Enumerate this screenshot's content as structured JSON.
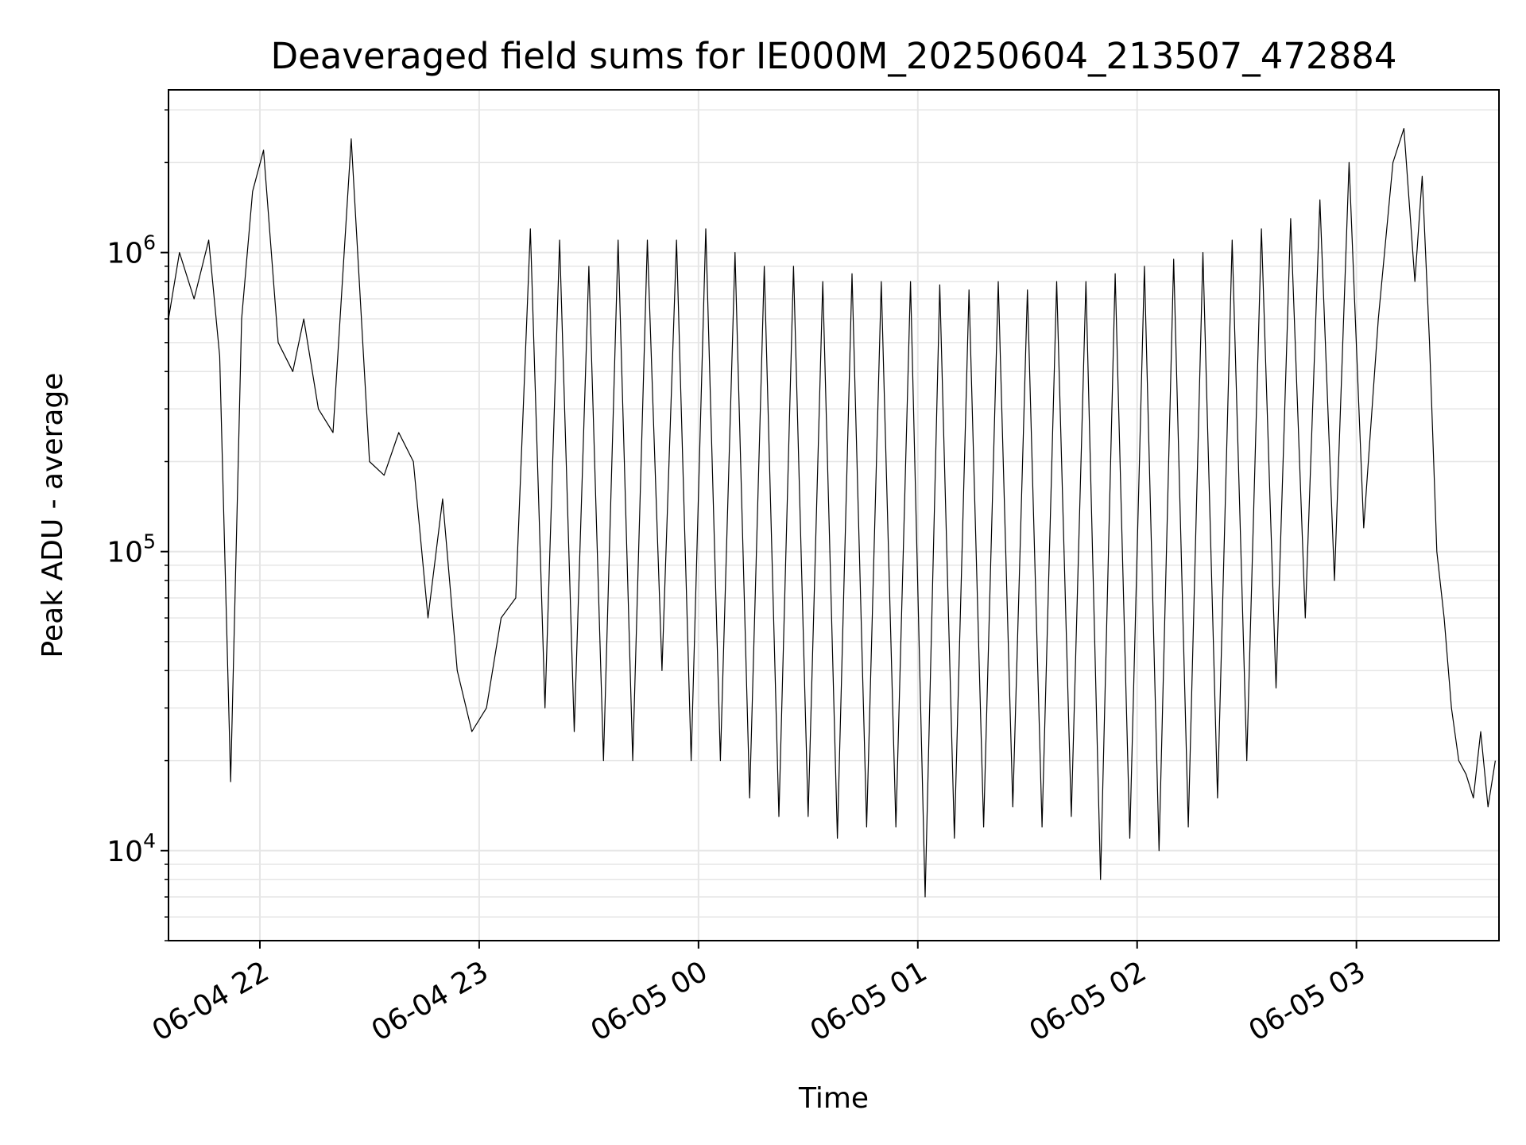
{
  "chart_data": {
    "type": "line",
    "title": "Deaveraged field sums for IE000M_20250604_213507_472884",
    "xlabel": "Time",
    "ylabel": "Peak ADU - average",
    "yscale": "log",
    "grid": true,
    "line_color": "#000000",
    "grid_color": "#e6e6e6",
    "x_range": [
      "2025-06-04 21:35",
      "2025-06-05 03:39"
    ],
    "y_range": [
      5000,
      3500000
    ],
    "x_ticks": [
      {
        "value": "2025-06-04 22:00",
        "label": "06-04 22"
      },
      {
        "value": "2025-06-04 23:00",
        "label": "06-04 23"
      },
      {
        "value": "2025-06-05 00:00",
        "label": "06-05 00"
      },
      {
        "value": "2025-06-05 01:00",
        "label": "06-05 01"
      },
      {
        "value": "2025-06-05 02:00",
        "label": "06-05 02"
      },
      {
        "value": "2025-06-05 03:00",
        "label": "06-05 03"
      }
    ],
    "y_ticks": [
      {
        "value": 10000,
        "base": "10",
        "exp": "4"
      },
      {
        "value": 100000,
        "base": "10",
        "exp": "5"
      },
      {
        "value": 1000000,
        "base": "10",
        "exp": "6"
      }
    ],
    "series": [
      {
        "x": [
          "2025-06-04 21:35",
          "2025-06-04 21:38",
          "2025-06-04 21:42",
          "2025-06-04 21:46",
          "2025-06-04 21:49",
          "2025-06-04 21:52",
          "2025-06-04 21:55",
          "2025-06-04 21:58",
          "2025-06-04 22:01",
          "2025-06-04 22:05",
          "2025-06-04 22:09",
          "2025-06-04 22:12",
          "2025-06-04 22:16",
          "2025-06-04 22:20",
          "2025-06-04 22:25",
          "2025-06-04 22:30",
          "2025-06-04 22:34",
          "2025-06-04 22:38",
          "2025-06-04 22:42",
          "2025-06-04 22:46",
          "2025-06-04 22:50",
          "2025-06-04 22:54",
          "2025-06-04 22:58",
          "2025-06-04 23:02",
          "2025-06-04 23:06",
          "2025-06-04 23:10",
          "2025-06-04 23:14",
          "2025-06-04 23:18",
          "2025-06-04 23:22",
          "2025-06-04 23:26",
          "2025-06-04 23:30",
          "2025-06-04 23:34",
          "2025-06-04 23:38",
          "2025-06-04 23:42",
          "2025-06-04 23:46",
          "2025-06-04 23:50",
          "2025-06-04 23:54",
          "2025-06-04 23:58",
          "2025-06-05 00:02",
          "2025-06-05 00:06",
          "2025-06-05 00:10",
          "2025-06-05 00:14",
          "2025-06-05 00:18",
          "2025-06-05 00:22",
          "2025-06-05 00:26",
          "2025-06-05 00:30",
          "2025-06-05 00:34",
          "2025-06-05 00:38",
          "2025-06-05 00:42",
          "2025-06-05 00:46",
          "2025-06-05 00:50",
          "2025-06-05 00:54",
          "2025-06-05 00:58",
          "2025-06-05 01:02",
          "2025-06-05 01:06",
          "2025-06-05 01:10",
          "2025-06-05 01:14",
          "2025-06-05 01:18",
          "2025-06-05 01:22",
          "2025-06-05 01:26",
          "2025-06-05 01:30",
          "2025-06-05 01:34",
          "2025-06-05 01:38",
          "2025-06-05 01:42",
          "2025-06-05 01:46",
          "2025-06-05 01:50",
          "2025-06-05 01:54",
          "2025-06-05 01:58",
          "2025-06-05 02:02",
          "2025-06-05 02:06",
          "2025-06-05 02:10",
          "2025-06-05 02:14",
          "2025-06-05 02:18",
          "2025-06-05 02:22",
          "2025-06-05 02:26",
          "2025-06-05 02:30",
          "2025-06-05 02:34",
          "2025-06-05 02:38",
          "2025-06-05 02:42",
          "2025-06-05 02:46",
          "2025-06-05 02:50",
          "2025-06-05 02:54",
          "2025-06-05 02:58",
          "2025-06-05 03:02",
          "2025-06-05 03:06",
          "2025-06-05 03:10",
          "2025-06-05 03:13",
          "2025-06-05 03:16",
          "2025-06-05 03:18",
          "2025-06-05 03:20",
          "2025-06-05 03:22",
          "2025-06-05 03:24",
          "2025-06-05 03:26",
          "2025-06-05 03:28",
          "2025-06-05 03:30",
          "2025-06-05 03:32",
          "2025-06-05 03:34",
          "2025-06-05 03:36",
          "2025-06-05 03:38"
        ],
        "y": [
          600000,
          1000000,
          700000,
          1100000,
          450000,
          17000,
          600000,
          1600000,
          2200000,
          500000,
          400000,
          600000,
          300000,
          250000,
          2400000,
          200000,
          180000,
          250000,
          200000,
          60000,
          150000,
          40000,
          25000,
          30000,
          60000,
          70000,
          1200000,
          30000,
          1100000,
          25000,
          900000,
          20000,
          1100000,
          20000,
          1100000,
          40000,
          1100000,
          20000,
          1200000,
          20000,
          1000000,
          15000,
          900000,
          13000,
          900000,
          13000,
          800000,
          11000,
          850000,
          12000,
          800000,
          12000,
          800000,
          7000,
          780000,
          11000,
          750000,
          12000,
          800000,
          14000,
          750000,
          12000,
          800000,
          13000,
          800000,
          8000,
          850000,
          11000,
          900000,
          10000,
          950000,
          12000,
          1000000,
          15000,
          1100000,
          20000,
          1200000,
          35000,
          1300000,
          60000,
          1500000,
          80000,
          2000000,
          120000,
          600000,
          2000000,
          2600000,
          800000,
          1800000,
          500000,
          100000,
          60000,
          30000,
          20000,
          18000,
          15000,
          25000,
          14000,
          20000
        ]
      }
    ]
  }
}
